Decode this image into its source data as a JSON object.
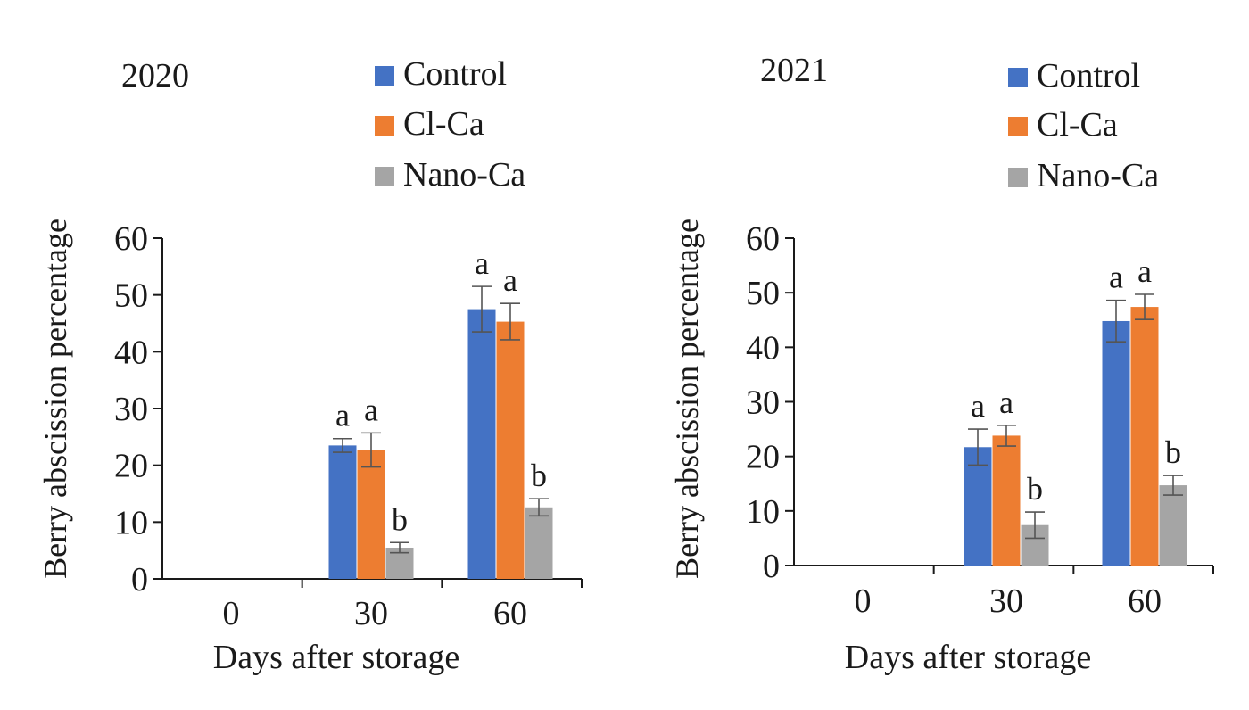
{
  "chart_data": [
    {
      "type": "bar",
      "title": "2020",
      "xlabel": "Days after storage",
      "ylabel": "Berry abscission percentage",
      "ylim": [
        0,
        60
      ],
      "yticks": [
        0,
        10,
        20,
        30,
        40,
        50,
        60
      ],
      "categories": [
        "0",
        "30",
        "60"
      ],
      "series": [
        {
          "name": "Control",
          "color": "#4472c4",
          "values": [
            0,
            23.5,
            47.5
          ],
          "errors": [
            0,
            1.2,
            4.0
          ],
          "letters": [
            "",
            "a",
            "a"
          ]
        },
        {
          "name": "Cl-Ca",
          "color": "#ed7d31",
          "values": [
            0,
            22.7,
            45.3
          ],
          "errors": [
            0,
            3.0,
            3.2
          ],
          "letters": [
            "",
            "a",
            "a"
          ]
        },
        {
          "name": "Nano-Ca",
          "color": "#a5a5a5",
          "values": [
            0,
            5.5,
            12.6
          ],
          "errors": [
            0,
            0.9,
            1.5
          ],
          "letters": [
            "",
            "b",
            "b"
          ]
        }
      ]
    },
    {
      "type": "bar",
      "title": "2021",
      "xlabel": "Days after storage",
      "ylabel": "Berry abscission percentage",
      "ylim": [
        0,
        60
      ],
      "yticks": [
        0,
        10,
        20,
        30,
        40,
        50,
        60
      ],
      "categories": [
        "0",
        "30",
        "60"
      ],
      "series": [
        {
          "name": "Control",
          "color": "#4472c4",
          "values": [
            0,
            21.7,
            44.8
          ],
          "errors": [
            0,
            3.3,
            3.8
          ],
          "letters": [
            "",
            "a",
            "a"
          ]
        },
        {
          "name": "Cl-Ca",
          "color": "#ed7d31",
          "values": [
            0,
            23.8,
            47.4
          ],
          "errors": [
            0,
            1.9,
            2.3
          ],
          "letters": [
            "",
            "a",
            "a"
          ]
        },
        {
          "name": "Nano-Ca",
          "color": "#a5a5a5",
          "values": [
            0,
            7.4,
            14.7
          ],
          "errors": [
            0,
            2.4,
            1.8
          ],
          "letters": [
            "",
            "b",
            "b"
          ]
        }
      ]
    }
  ]
}
